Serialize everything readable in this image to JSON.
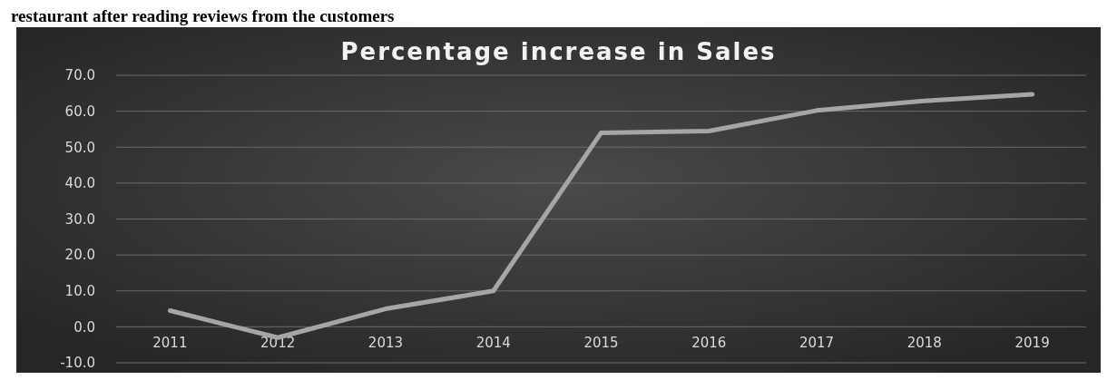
{
  "chart_data": {
    "type": "line",
    "title": "Percentage increase in Sales",
    "annotations": [
      "restaurant after reading reviews from the customers"
    ],
    "categories": [
      "2011",
      "2012",
      "2013",
      "2014",
      "2015",
      "2016",
      "2017",
      "2018",
      "2019"
    ],
    "series": [
      {
        "color": "#a6a6a6",
        "values": [
          4.5,
          -3,
          5,
          10,
          54,
          54.5,
          60.2,
          62.9,
          64.7
        ]
      }
    ],
    "ylim": [
      -10,
      70
    ],
    "yticks": [
      {
        "value": -10,
        "label": "-10.0"
      },
      {
        "value": 0,
        "label": "0.0"
      },
      {
        "value": 10,
        "label": "10.0"
      },
      {
        "value": 20,
        "label": "20.0"
      },
      {
        "value": 30,
        "label": "30.0"
      },
      {
        "value": 40,
        "label": "40.0"
      },
      {
        "value": 50,
        "label": "50.0"
      },
      {
        "value": 60,
        "label": "60.0"
      },
      {
        "value": 70,
        "label": "70.0"
      }
    ],
    "grid": "y",
    "marker": "none",
    "line_style": "solid"
  }
}
